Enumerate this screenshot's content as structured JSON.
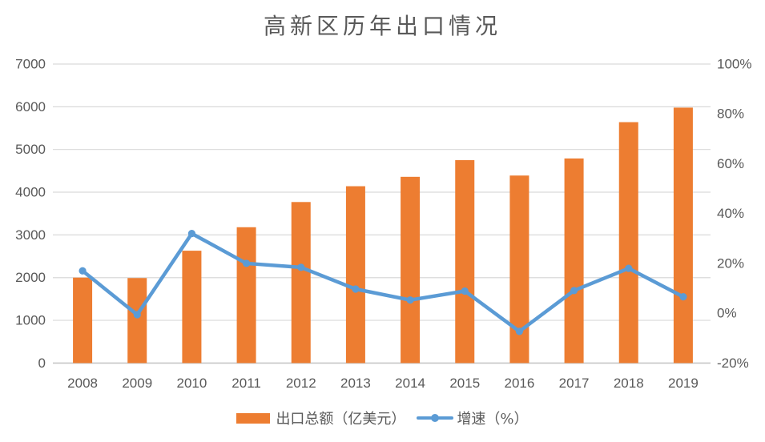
{
  "title": "高新区历年出口情况",
  "colors": {
    "bar": "#ED7D31",
    "line": "#5B9BD5",
    "grid": "#D9D9D9",
    "axis_line": "#C6C6C6",
    "text": "#595959",
    "background": "#FFFFFF"
  },
  "legend": {
    "items": [
      {
        "label": "出口总额（亿美元）",
        "type": "bar"
      },
      {
        "label": "增速（%）",
        "type": "line"
      }
    ]
  },
  "chart_data": {
    "type": "bar+line combo",
    "title": "高新区历年出口情况",
    "categories": [
      "2008",
      "2009",
      "2010",
      "2011",
      "2012",
      "2013",
      "2014",
      "2015",
      "2016",
      "2017",
      "2018",
      "2019"
    ],
    "series": [
      {
        "name": "出口总额（亿美元）",
        "type": "bar",
        "axis": "left",
        "values": [
          2000,
          1990,
          2630,
          3180,
          3770,
          4140,
          4360,
          4750,
          4390,
          4790,
          5640,
          5980
        ]
      },
      {
        "name": "增速（%）",
        "type": "line",
        "axis": "right",
        "values": [
          17,
          -0.6,
          32,
          20,
          18.4,
          9.7,
          5.3,
          8.9,
          -7.3,
          9.1,
          18,
          6.6
        ]
      }
    ],
    "left_axis": {
      "min": 0,
      "max": 7000,
      "step": 1000,
      "ticks": [
        "0",
        "1000",
        "2000",
        "3000",
        "4000",
        "5000",
        "6000",
        "7000"
      ]
    },
    "right_axis": {
      "min": -20,
      "max": 100,
      "step": 20,
      "ticks": [
        "-20%",
        "0%",
        "20%",
        "40%",
        "60%",
        "80%",
        "100%"
      ]
    },
    "grid": true,
    "legend_position": "bottom"
  }
}
